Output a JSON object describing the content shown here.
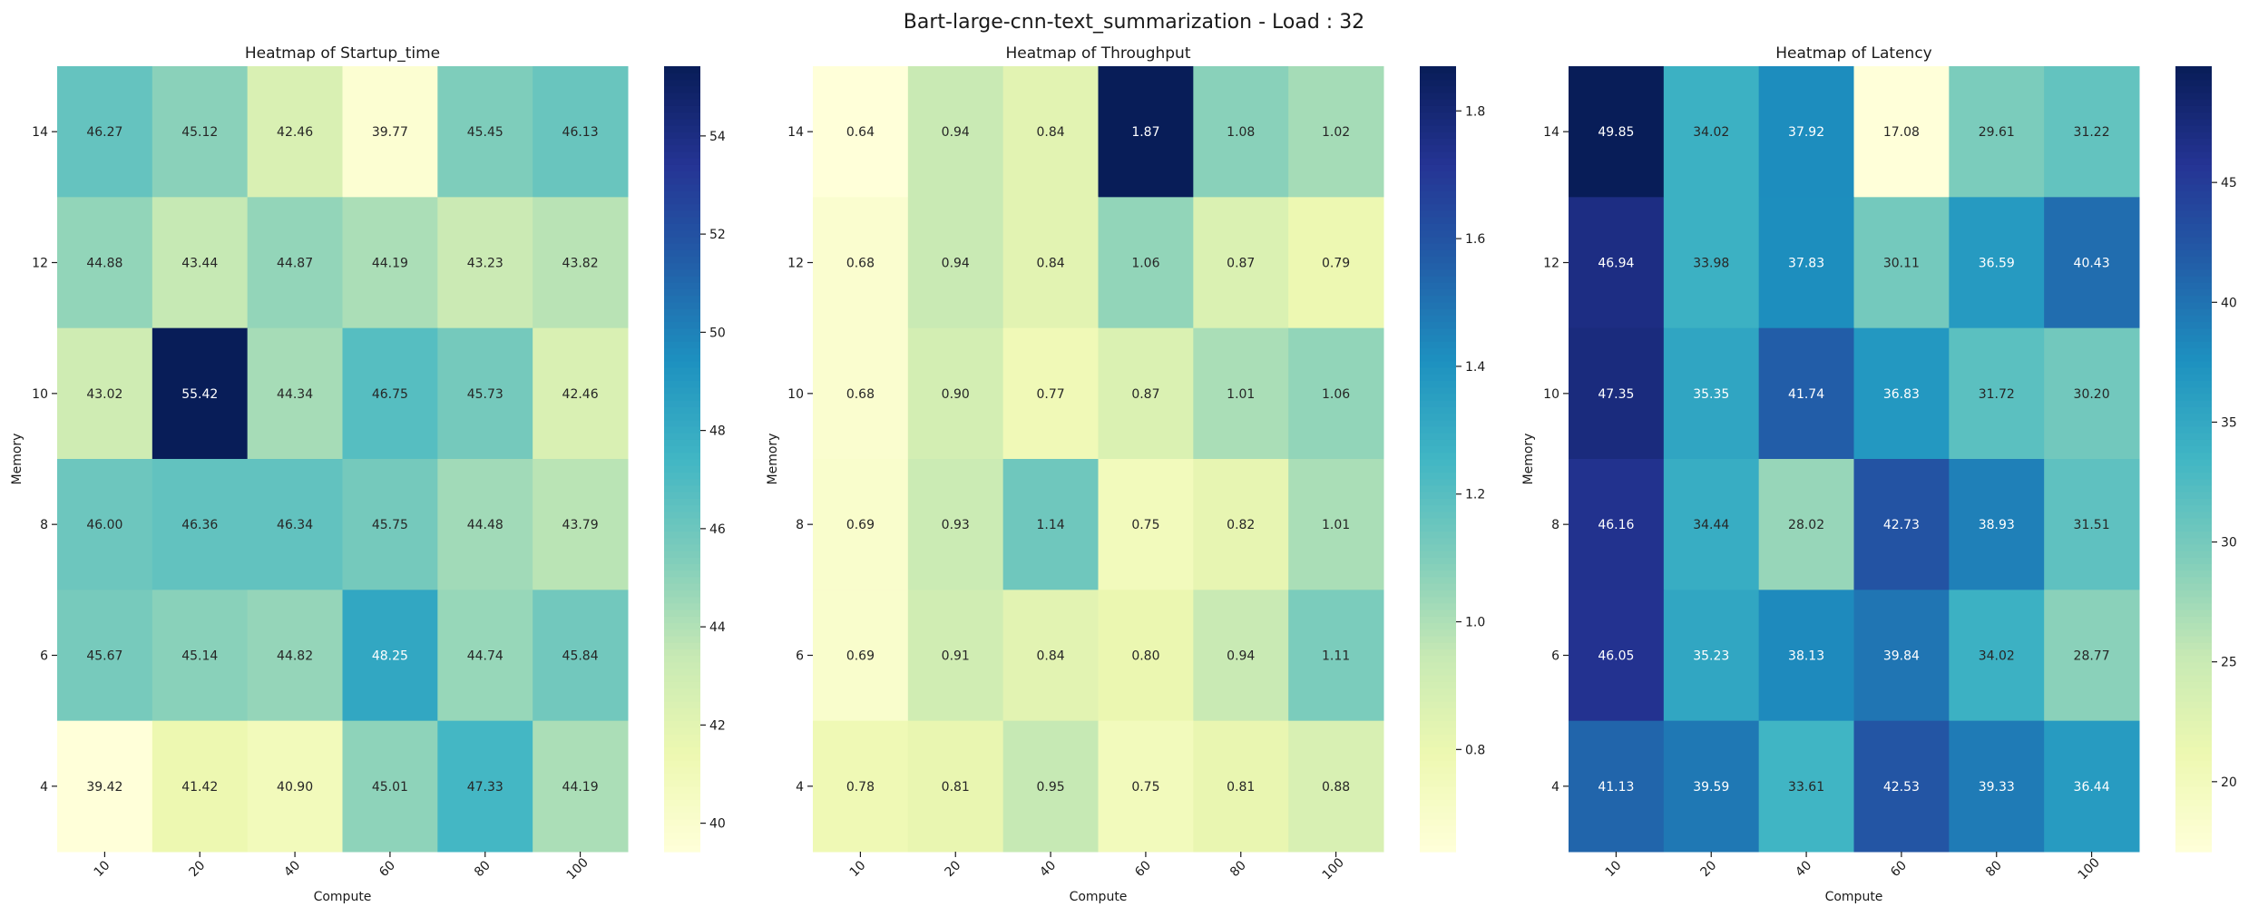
{
  "suptitle": "Bart-large-cnn-text_summarization - Load : 32",
  "chart_data": [
    {
      "type": "heatmap",
      "title": "Heatmap of Startup_time",
      "xlabel": "Compute",
      "ylabel": "Memory",
      "x": [
        10,
        20,
        40,
        60,
        80,
        100
      ],
      "y": [
        14,
        12,
        10,
        8,
        6,
        4
      ],
      "values": [
        [
          46.27,
          45.12,
          42.46,
          39.77,
          45.45,
          46.13
        ],
        [
          44.88,
          43.44,
          44.87,
          44.19,
          43.23,
          43.82
        ],
        [
          43.02,
          55.42,
          44.34,
          46.75,
          45.73,
          42.46
        ],
        [
          46.0,
          46.36,
          46.34,
          45.75,
          44.48,
          43.79
        ],
        [
          45.67,
          45.14,
          44.82,
          48.25,
          44.74,
          45.84
        ],
        [
          39.42,
          41.42,
          40.9,
          45.01,
          47.33,
          44.19
        ]
      ],
      "colorbar_ticks": [
        40,
        42,
        44,
        46,
        48,
        50,
        52,
        54
      ],
      "colorbar_tick_labels": [
        "40",
        "42",
        "44",
        "46",
        "48",
        "50",
        "52",
        "54"
      ],
      "colormap": "YlGnBu"
    },
    {
      "type": "heatmap",
      "title": "Heatmap of Throughput",
      "xlabel": "Compute",
      "ylabel": "Memory",
      "x": [
        10,
        20,
        40,
        60,
        80,
        100
      ],
      "y": [
        14,
        12,
        10,
        8,
        6,
        4
      ],
      "values": [
        [
          0.64,
          0.94,
          0.84,
          1.87,
          1.08,
          1.02
        ],
        [
          0.68,
          0.94,
          0.84,
          1.06,
          0.87,
          0.79
        ],
        [
          0.68,
          0.9,
          0.77,
          0.87,
          1.01,
          1.06
        ],
        [
          0.69,
          0.93,
          1.14,
          0.75,
          0.82,
          1.01
        ],
        [
          0.69,
          0.91,
          0.84,
          0.8,
          0.94,
          1.11
        ],
        [
          0.78,
          0.81,
          0.95,
          0.75,
          0.81,
          0.88
        ]
      ],
      "colorbar_ticks": [
        0.8,
        1.0,
        1.2,
        1.4,
        1.6,
        1.8
      ],
      "colorbar_tick_labels": [
        "0.8",
        "1.0",
        "1.2",
        "1.4",
        "1.6",
        "1.8"
      ],
      "colormap": "YlGnBu"
    },
    {
      "type": "heatmap",
      "title": "Heatmap of Latency",
      "xlabel": "Compute",
      "ylabel": "Memory",
      "x": [
        10,
        20,
        40,
        60,
        80,
        100
      ],
      "y": [
        14,
        12,
        10,
        8,
        6,
        4
      ],
      "values": [
        [
          49.85,
          34.02,
          37.92,
          17.08,
          29.61,
          31.22
        ],
        [
          46.94,
          33.98,
          37.83,
          30.11,
          36.59,
          40.43
        ],
        [
          47.35,
          35.35,
          41.74,
          36.83,
          31.72,
          30.2
        ],
        [
          46.16,
          34.44,
          28.02,
          42.73,
          38.93,
          31.51
        ],
        [
          46.05,
          35.23,
          38.13,
          39.84,
          34.02,
          28.77
        ],
        [
          41.13,
          39.59,
          33.61,
          42.53,
          39.33,
          36.44
        ]
      ],
      "colorbar_ticks": [
        20,
        25,
        30,
        35,
        40,
        45
      ],
      "colorbar_tick_labels": [
        "20",
        "25",
        "30",
        "35",
        "40",
        "45"
      ],
      "colormap": "YlGnBu"
    }
  ]
}
